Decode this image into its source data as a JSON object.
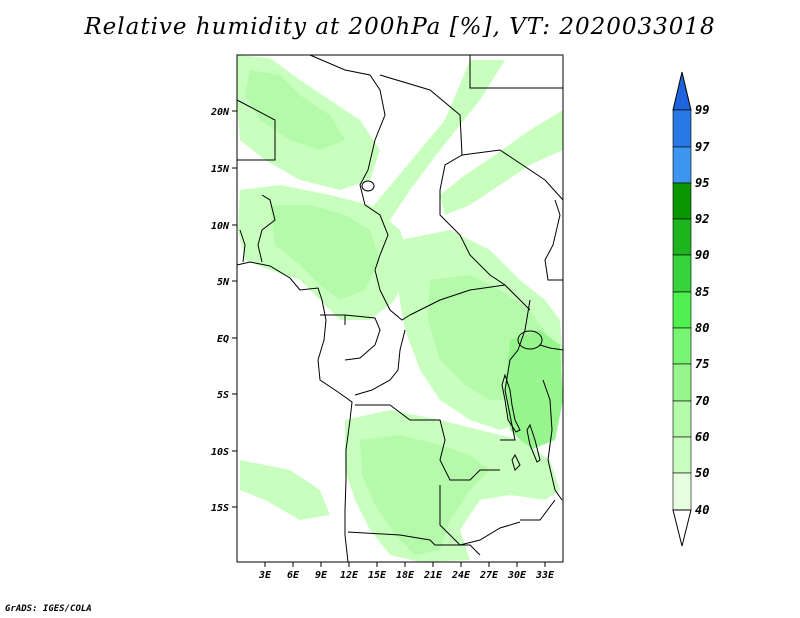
{
  "title": "Relative humidity at 200hPa [%], VT: 2020033018",
  "credit": "GrADS: IGES/COLA",
  "map": {
    "lat_labels": [
      "20N",
      "15N",
      "10N",
      "5N",
      "EQ",
      "5S",
      "10S",
      "15S"
    ],
    "lon_labels": [
      "3E",
      "6E",
      "9E",
      "12E",
      "15E",
      "18E",
      "21E",
      "24E",
      "27E",
      "30E",
      "33E"
    ]
  },
  "colorbar": {
    "labels": [
      "99",
      "97",
      "95",
      "92",
      "90",
      "85",
      "80",
      "75",
      "70",
      "60",
      "50",
      "40"
    ],
    "colors": [
      "#1e64dc",
      "#2878e6",
      "#3c96f0",
      "#0a9600",
      "#1eb41e",
      "#37d23c",
      "#50f050",
      "#78f573",
      "#96f58c",
      "#b4faaa",
      "#c8ffbe",
      "#e6ffe1"
    ]
  }
}
